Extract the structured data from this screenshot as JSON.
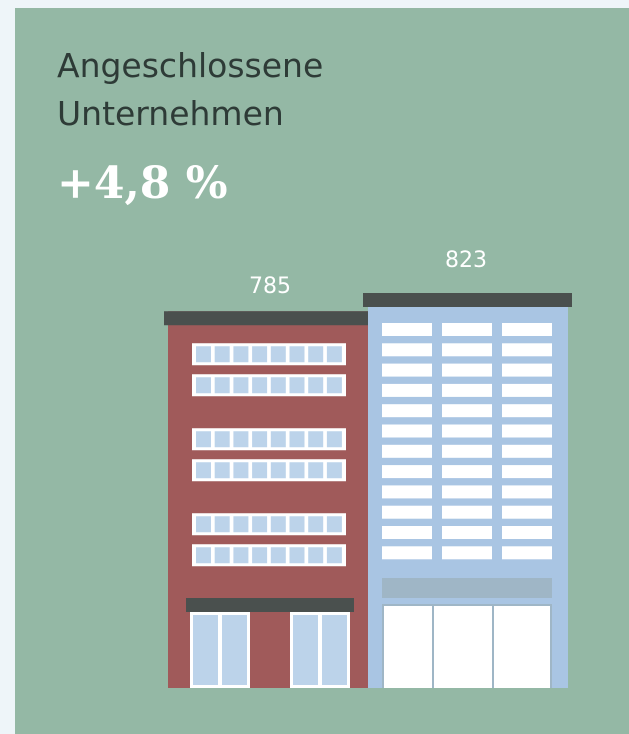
{
  "chart_data": {
    "type": "bar",
    "title": "Angeschlossene Unternehmen",
    "subtitle": "+4,8 %",
    "categories": [
      null,
      null
    ],
    "values": [
      785,
      823
    ],
    "series_colors": [
      "#a05a5a",
      "#a9c5e3"
    ]
  }
}
